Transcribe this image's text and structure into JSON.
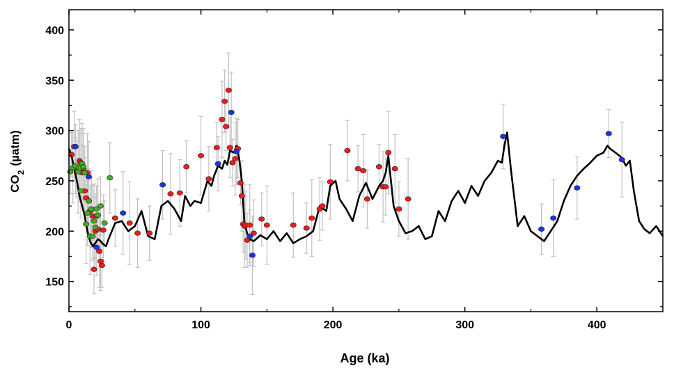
{
  "chart_data": {
    "type": "scatter",
    "title": "",
    "xlabel": "Age (ka)",
    "ylabel": {
      "main": "CO",
      "sub": "2",
      "unit": "(µatm)"
    },
    "xlim": [
      0,
      450
    ],
    "ylim": [
      120,
      420
    ],
    "xticks": [
      0,
      100,
      200,
      300,
      400
    ],
    "yticks": [
      150,
      200,
      250,
      300,
      350,
      400
    ],
    "grid": false,
    "legend": "none",
    "colors": {
      "line": "#000000",
      "errorbar": "#c0c0c0",
      "red": "#ee1c1c",
      "blue": "#1a33ee",
      "green": "#44aa22",
      "marker_edge": "#222222"
    },
    "series": [
      {
        "kind": "line",
        "color": "#000000",
        "x": [
          0,
          2,
          4,
          6,
          8,
          10,
          12,
          14,
          16,
          18,
          20,
          22,
          24,
          26,
          28,
          30,
          35,
          40,
          45,
          50,
          55,
          60,
          65,
          70,
          75,
          80,
          85,
          88,
          92,
          95,
          100,
          105,
          108,
          110,
          113,
          116,
          118,
          120,
          122,
          125,
          127,
          129,
          131,
          133,
          135,
          137,
          140,
          145,
          150,
          155,
          160,
          165,
          170,
          175,
          180,
          185,
          190,
          195,
          198,
          202,
          205,
          210,
          215,
          220,
          225,
          230,
          235,
          238,
          240,
          242,
          244,
          246,
          250,
          255,
          260,
          265,
          270,
          275,
          280,
          285,
          290,
          295,
          300,
          305,
          310,
          315,
          320,
          325,
          328,
          330,
          332,
          335,
          340,
          345,
          350,
          355,
          360,
          365,
          370,
          375,
          380,
          385,
          390,
          395,
          400,
          405,
          408,
          410,
          412,
          415,
          418,
          420,
          422,
          425,
          428,
          432,
          436,
          440,
          445,
          450
        ],
        "y": [
          282,
          275,
          262,
          250,
          235,
          225,
          215,
          200,
          190,
          185,
          188,
          192,
          190,
          187,
          185,
          192,
          208,
          210,
          200,
          205,
          220,
          195,
          192,
          225,
          230,
          222,
          210,
          235,
          225,
          230,
          228,
          250,
          245,
          255,
          265,
          262,
          270,
          266,
          280,
          278,
          285,
          272,
          250,
          208,
          198,
          192,
          190,
          196,
          192,
          200,
          190,
          198,
          188,
          192,
          195,
          200,
          225,
          220,
          245,
          250,
          232,
          222,
          210,
          235,
          248,
          232,
          245,
          250,
          258,
          275,
          250,
          225,
          210,
          198,
          200,
          205,
          192,
          195,
          220,
          210,
          230,
          240,
          228,
          245,
          235,
          250,
          258,
          270,
          268,
          285,
          298,
          260,
          205,
          215,
          200,
          195,
          190,
          200,
          210,
          230,
          245,
          255,
          262,
          268,
          275,
          278,
          285,
          282,
          280,
          277,
          274,
          270,
          265,
          270,
          240,
          210,
          202,
          198,
          205,
          195
        ]
      },
      {
        "kind": "points",
        "color": "#ee1c1c",
        "x": [
          2,
          4,
          6,
          8,
          9,
          10,
          11,
          12,
          13,
          14,
          15,
          16,
          17,
          18,
          19,
          20,
          21,
          22,
          23,
          24,
          25,
          26,
          35,
          46,
          52,
          61,
          77,
          84,
          89,
          100,
          106,
          112,
          116,
          118,
          119,
          121,
          122,
          124,
          126,
          128,
          130,
          131,
          132,
          133,
          134,
          135,
          137,
          140,
          146,
          150,
          170,
          180,
          184,
          190,
          192,
          198,
          211,
          219,
          223,
          226,
          235,
          238,
          240,
          242,
          247,
          250,
          257
        ],
        "y": [
          276,
          284,
          262,
          270,
          268,
          258,
          262,
          240,
          233,
          258,
          230,
          220,
          222,
          215,
          162,
          200,
          215,
          202,
          180,
          170,
          166,
          201,
          213,
          208,
          198,
          198,
          237,
          238,
          264,
          275,
          252,
          283,
          311,
          329,
          304,
          340,
          283,
          268,
          272,
          282,
          248,
          235,
          207,
          205,
          206,
          191,
          206,
          198,
          212,
          206,
          206,
          203,
          213,
          222,
          225,
          249,
          280,
          262,
          260,
          232,
          264,
          244,
          244,
          278,
          262,
          222,
          232
        ]
      },
      {
        "kind": "points",
        "color": "#1a33ee",
        "x": [
          5,
          15,
          21,
          41,
          71,
          113,
          123,
          127,
          137,
          139,
          329,
          358,
          367,
          385,
          409,
          419
        ],
        "y": [
          284,
          254,
          184,
          218,
          246,
          267,
          318,
          279,
          195,
          176,
          294,
          202,
          213,
          243,
          297,
          271
        ]
      },
      {
        "kind": "points",
        "color": "#44aa22",
        "x": [
          1,
          3,
          5,
          7,
          8,
          9,
          10,
          11,
          12,
          13,
          14,
          15,
          16,
          17,
          18,
          19,
          20,
          21,
          22,
          24,
          27,
          31
        ],
        "y": [
          259,
          263,
          265,
          259,
          263,
          240,
          267,
          264,
          258,
          207,
          218,
          230,
          195,
          222,
          195,
          210,
          204,
          222,
          216,
          225,
          208,
          253
        ]
      }
    ]
  }
}
